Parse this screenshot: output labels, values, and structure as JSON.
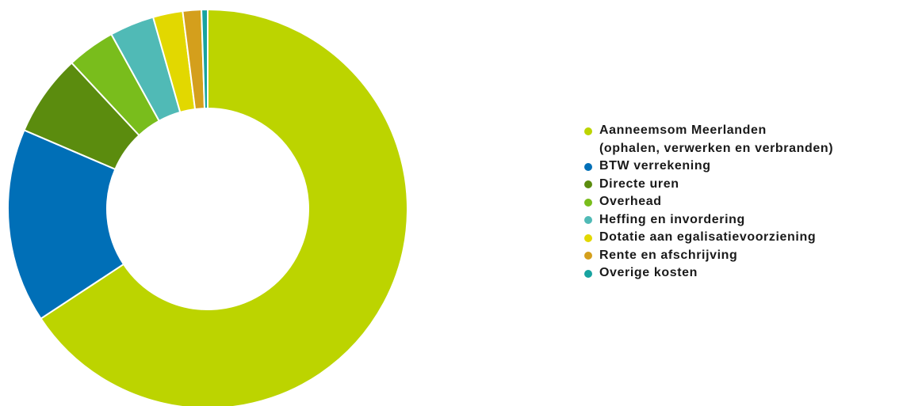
{
  "chart_data": {
    "type": "pie",
    "donut": true,
    "title": "",
    "legend_position": "right",
    "categories": [
      "Aanneemsom Meerlanden\n(ophalen, verwerken en verbranden)",
      "BTW verrekening",
      "Directe uren",
      "Overhead",
      "Heffing en invordering",
      "Dotatie aan egalisatievoorziening",
      "Rente en afschrijving",
      "Overige kosten"
    ],
    "values": [
      65.6,
      15.7,
      6.6,
      3.9,
      3.6,
      2.4,
      1.5,
      0.5
    ],
    "colors": [
      "#bcd400",
      "#006fb7",
      "#5b8c0e",
      "#79bd1c",
      "#50bab6",
      "#e2d800",
      "#d49f1c",
      "#17a3a0"
    ]
  }
}
